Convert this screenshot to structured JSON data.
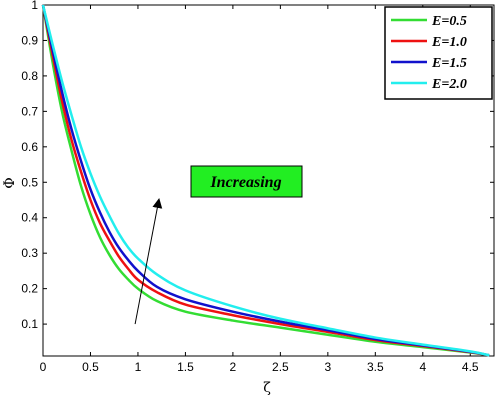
{
  "chart_data": {
    "type": "line",
    "xlabel": "ζ",
    "ylabel": "Φ",
    "xlim": [
      0,
      4.75
    ],
    "ylim": [
      0.01,
      1
    ],
    "xticks": [
      "0",
      "0.5",
      "1",
      "1.5",
      "2",
      "2.5",
      "3",
      "3.5",
      "4",
      "4.5"
    ],
    "yticks": [
      "0.1",
      "0.2",
      "0.3",
      "0.4",
      "0.5",
      "0.6",
      "0.7",
      "0.8",
      "0.9",
      "1"
    ],
    "grid": false,
    "legend_position": "top-right",
    "series": [
      {
        "name": "E=0.5",
        "color": "#33dd33",
        "x": [
          0,
          0.1,
          0.2,
          0.3,
          0.4,
          0.5,
          0.6,
          0.7,
          0.8,
          0.9,
          1.0,
          1.2,
          1.5,
          2.0,
          2.5,
          3.0,
          3.5,
          4.0,
          4.5,
          4.7
        ],
        "y": [
          1.0,
          0.84,
          0.7,
          0.59,
          0.49,
          0.41,
          0.345,
          0.295,
          0.255,
          0.225,
          0.2,
          0.165,
          0.135,
          0.11,
          0.09,
          0.07,
          0.05,
          0.035,
          0.02,
          0.012
        ]
      },
      {
        "name": "E=1.0",
        "color": "#ee1111",
        "x": [
          0,
          0.1,
          0.2,
          0.3,
          0.4,
          0.5,
          0.6,
          0.7,
          0.8,
          0.9,
          1.0,
          1.2,
          1.5,
          2.0,
          2.5,
          3.0,
          3.5,
          4.0,
          4.5,
          4.7
        ],
        "y": [
          1.0,
          0.86,
          0.73,
          0.62,
          0.53,
          0.45,
          0.385,
          0.335,
          0.29,
          0.255,
          0.225,
          0.19,
          0.155,
          0.125,
          0.1,
          0.078,
          0.055,
          0.038,
          0.021,
          0.012
        ]
      },
      {
        "name": "E=1.5",
        "color": "#1111cc",
        "x": [
          0,
          0.1,
          0.2,
          0.3,
          0.4,
          0.5,
          0.6,
          0.7,
          0.8,
          0.9,
          1.0,
          1.2,
          1.5,
          2.0,
          2.5,
          3.0,
          3.5,
          4.0,
          4.5,
          4.7
        ],
        "y": [
          1.0,
          0.875,
          0.755,
          0.65,
          0.56,
          0.48,
          0.415,
          0.36,
          0.315,
          0.28,
          0.25,
          0.205,
          0.17,
          0.135,
          0.107,
          0.083,
          0.058,
          0.04,
          0.022,
          0.012
        ]
      },
      {
        "name": "E=2.0",
        "color": "#22eeee",
        "x": [
          0,
          0.1,
          0.2,
          0.3,
          0.4,
          0.5,
          0.6,
          0.7,
          0.8,
          0.9,
          1.0,
          1.2,
          1.5,
          2.0,
          2.5,
          3.0,
          3.5,
          4.0,
          4.5,
          4.7
        ],
        "y": [
          1.0,
          0.89,
          0.785,
          0.69,
          0.6,
          0.525,
          0.46,
          0.405,
          0.355,
          0.315,
          0.285,
          0.24,
          0.195,
          0.15,
          0.115,
          0.088,
          0.062,
          0.042,
          0.023,
          0.012
        ]
      }
    ],
    "annotation": {
      "text": "Increasing",
      "box_color": "#22ee22",
      "arrow_from": [
        0.97,
        0.1
      ],
      "arrow_to": [
        1.22,
        0.45
      ]
    }
  }
}
